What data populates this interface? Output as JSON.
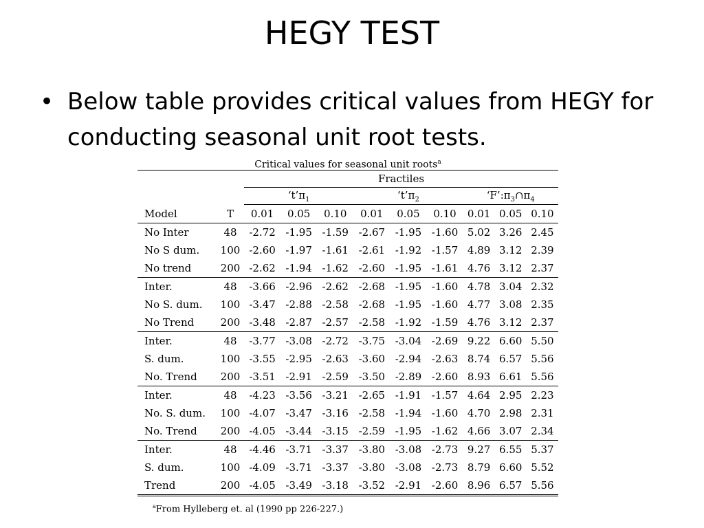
{
  "slide": {
    "title": "HEGY TEST",
    "bullet_symbol": "•",
    "bullet_text": "Below table provides critical values from HEGY for conducting seasonal unit root tests."
  },
  "table": {
    "caption": "Critical values for seasonal unit roots",
    "caption_mark": "a",
    "spanner": "Fractiles",
    "groups": [
      {
        "label_pre": "‘t’π",
        "label_sub": "1",
        "label_post": ""
      },
      {
        "label_pre": "‘t’π",
        "label_sub": "2",
        "label_post": ""
      },
      {
        "label_pre": "‘F’:π",
        "label_sub": "3",
        "label_mid": "∩π",
        "label_sub2": "4"
      }
    ],
    "columns": [
      "Model",
      "T",
      "0.01",
      "0.05",
      "0.10",
      "0.01",
      "0.05",
      "0.10",
      "0.01",
      "0.05",
      "0.10"
    ],
    "rows": [
      [
        "No Inter",
        "48",
        "-2.72",
        "-1.95",
        "-1.59",
        "-2.67",
        "-1.95",
        "-1.60",
        "5.02",
        "3.26",
        "2.45"
      ],
      [
        "No S dum.",
        "100",
        "-2.60",
        "-1.97",
        "-1.61",
        "-2.61",
        "-1.92",
        "-1.57",
        "4.89",
        "3.12",
        "2.39"
      ],
      [
        "No trend",
        "200",
        "-2.62",
        "-1.94",
        "-1.62",
        "-2.60",
        "-1.95",
        "-1.61",
        "4.76",
        "3.12",
        "2.37"
      ],
      [
        "Inter.",
        "48",
        "-3.66",
        "-2.96",
        "-2.62",
        "-2.68",
        "-1.95",
        "-1.60",
        "4.78",
        "3.04",
        "2.32"
      ],
      [
        "No S. dum.",
        "100",
        "-3.47",
        "-2.88",
        "-2.58",
        "-2.68",
        "-1.95",
        "-1.60",
        "4.77",
        "3.08",
        "2.35"
      ],
      [
        "No Trend",
        "200",
        "-3.48",
        "-2.87",
        "-2.57",
        "-2.58",
        "-1.92",
        "-1.59",
        "4.76",
        "3.12",
        "2.37"
      ],
      [
        "Inter.",
        "48",
        "-3.77",
        "-3.08",
        "-2.72",
        "-3.75",
        "-3.04",
        "-2.69",
        "9.22",
        "6.60",
        "5.50"
      ],
      [
        "S. dum.",
        "100",
        "-3.55",
        "-2.95",
        "-2.63",
        "-3.60",
        "-2.94",
        "-2.63",
        "8.74",
        "6.57",
        "5.56"
      ],
      [
        "No. Trend",
        "200",
        "-3.51",
        "-2.91",
        "-2.59",
        "-3.50",
        "-2.89",
        "-2.60",
        "8.93",
        "6.61",
        "5.56"
      ],
      [
        "Inter.",
        "48",
        "-4.23",
        "-3.56",
        "-3.21",
        "-2.65",
        "-1.91",
        "-1.57",
        "4.64",
        "2.95",
        "2.23"
      ],
      [
        "No. S. dum.",
        "100",
        "-4.07",
        "-3.47",
        "-3.16",
        "-2.58",
        "-1.94",
        "-1.60",
        "4.70",
        "2.98",
        "2.31"
      ],
      [
        "No. Trend",
        "200",
        "-4.05",
        "-3.44",
        "-3.15",
        "-2.59",
        "-1.95",
        "-1.62",
        "4.66",
        "3.07",
        "2.34"
      ],
      [
        "Inter.",
        "48",
        "-4.46",
        "-3.71",
        "-3.37",
        "-3.80",
        "-3.08",
        "-2.73",
        "9.27",
        "6.55",
        "5.37"
      ],
      [
        "S. dum.",
        "100",
        "-4.09",
        "-3.71",
        "-3.37",
        "-3.80",
        "-3.08",
        "-2.73",
        "8.79",
        "6.60",
        "5.52"
      ],
      [
        "Trend",
        "200",
        "-4.05",
        "-3.49",
        "-3.18",
        "-3.52",
        "-2.91",
        "-2.60",
        "8.96",
        "6.57",
        "5.56"
      ]
    ],
    "block_ends": [
      2,
      5,
      8,
      11,
      14
    ],
    "footnote_mark": "a",
    "footnote": "From Hylleberg et. al (1990 pp 226-227.)"
  }
}
